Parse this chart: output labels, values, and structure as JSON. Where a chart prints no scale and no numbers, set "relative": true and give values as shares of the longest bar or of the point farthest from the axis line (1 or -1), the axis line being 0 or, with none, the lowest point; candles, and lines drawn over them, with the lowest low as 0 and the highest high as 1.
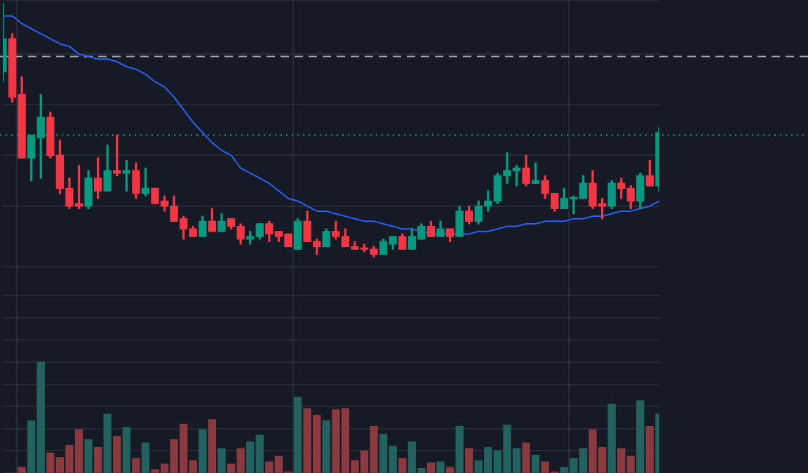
{
  "chart_data": [
    {
      "type": "candlestick",
      "relative": true,
      "tick_labels": false,
      "grid": true,
      "categories": [
        null,
        null,
        null,
        null,
        null,
        null,
        null,
        null,
        null,
        null,
        null,
        null,
        null,
        null,
        null,
        null,
        null,
        null,
        null,
        null,
        null,
        null,
        null,
        null,
        null,
        null,
        null,
        null,
        null,
        null,
        null,
        null,
        null,
        null,
        null,
        null,
        null,
        null,
        null,
        null,
        null,
        null,
        null,
        null,
        null,
        null,
        null,
        null,
        null,
        null,
        null,
        null,
        null,
        null,
        null,
        null,
        null,
        null,
        null,
        null,
        null,
        null,
        null,
        null,
        null,
        null,
        null,
        null,
        null,
        null
      ],
      "ohlc": [
        [
          0.73,
          1,
          0.69,
          0.86
        ],
        [
          0.86,
          0.88,
          0.61,
          0.63
        ],
        [
          0.64,
          0.71,
          0.39,
          0.39
        ],
        [
          0.39,
          0.48,
          0.3,
          0.48
        ],
        [
          0.47,
          0.64,
          0.31,
          0.55
        ],
        [
          0.55,
          0.57,
          0.39,
          0.4
        ],
        [
          0.4,
          0.46,
          0.25,
          0.27
        ],
        [
          0.27,
          0.31,
          0.19,
          0.2
        ],
        [
          0.21,
          0.36,
          0.19,
          0.2
        ],
        [
          0.2,
          0.34,
          0.19,
          0.31
        ],
        [
          0.31,
          0.39,
          0.23,
          0.26
        ],
        [
          0.26,
          0.44,
          0.26,
          0.34
        ],
        [
          0.34,
          0.48,
          0.32,
          0.33
        ],
        [
          0.33,
          0.38,
          0.26,
          0.34
        ],
        [
          0.34,
          0.37,
          0.23,
          0.25
        ],
        [
          0.25,
          0.35,
          0.24,
          0.27
        ],
        [
          0.27,
          0.27,
          0.21,
          0.21
        ],
        [
          0.22,
          0.24,
          0.18,
          0.2
        ],
        [
          0.2,
          0.24,
          0.14,
          0.14
        ],
        [
          0.15,
          0.16,
          0.07,
          0.11
        ],
        [
          0.11,
          0.12,
          0.08,
          0.08
        ],
        [
          0.08,
          0.16,
          0.08,
          0.14
        ],
        [
          0.14,
          0.19,
          0.1,
          0.1
        ],
        [
          0.1,
          0.17,
          0.1,
          0.14
        ],
        [
          0.15,
          0.15,
          0.11,
          0.12
        ],
        [
          0.12,
          0.13,
          0.05,
          0.07
        ],
        [
          0.07,
          0.1,
          0.05,
          0.08
        ],
        [
          0.08,
          0.13,
          0.07,
          0.13
        ],
        [
          0.13,
          0.14,
          0.06,
          0.09
        ],
        [
          0.1,
          0.1,
          0.06,
          0.08
        ],
        [
          0.09,
          0.09,
          0.04,
          0.04
        ],
        [
          0.03,
          0.15,
          0.03,
          0.14
        ],
        [
          0.14,
          0.18,
          0.06,
          0.06
        ],
        [
          0.06,
          0.07,
          0.01,
          0.04
        ],
        [
          0.04,
          0.11,
          0.04,
          0.1
        ],
        [
          0.1,
          0.14,
          0.07,
          0.08
        ],
        [
          0.08,
          0.11,
          0.04,
          0.04
        ],
        [
          0.04,
          0.06,
          0.03,
          0.03
        ],
        [
          0.035,
          0.05,
          0.02,
          0.03
        ],
        [
          0.03,
          0.04,
          0,
          0.01
        ],
        [
          0.01,
          0.07,
          0.01,
          0.06
        ],
        [
          0.05,
          0.08,
          0.03,
          0.08
        ],
        [
          0.08,
          0.09,
          0.03,
          0.03
        ],
        [
          0.03,
          0.11,
          0.03,
          0.08
        ],
        [
          0.07,
          0.13,
          0.07,
          0.12
        ],
        [
          0.12,
          0.14,
          0.08,
          0.08
        ],
        [
          0.08,
          0.14,
          0.08,
          0.11
        ],
        [
          0.11,
          0.11,
          0.06,
          0.08
        ],
        [
          0.08,
          0.2,
          0.08,
          0.18
        ],
        [
          0.18,
          0.2,
          0.13,
          0.14
        ],
        [
          0.14,
          0.22,
          0.13,
          0.2
        ],
        [
          0.2,
          0.26,
          0.18,
          0.22
        ],
        [
          0.22,
          0.33,
          0.21,
          0.32
        ],
        [
          0.32,
          0.41,
          0.29,
          0.34
        ],
        [
          0.34,
          0.36,
          0.28,
          0.35
        ],
        [
          0.35,
          0.4,
          0.28,
          0.29
        ],
        [
          0.29,
          0.37,
          0.29,
          0.3
        ],
        [
          0.3,
          0.32,
          0.23,
          0.25
        ],
        [
          0.25,
          0.25,
          0.18,
          0.19
        ],
        [
          0.19,
          0.27,
          0.19,
          0.23
        ],
        [
          0.228,
          0.24,
          0.17,
          0.234
        ],
        [
          0.23,
          0.32,
          0.23,
          0.29
        ],
        [
          0.29,
          0.34,
          0.19,
          0.2
        ],
        [
          0.21,
          0.23,
          0.15,
          0.2
        ],
        [
          0.2,
          0.3,
          0.19,
          0.29
        ],
        [
          0.29,
          0.31,
          0.23,
          0.27
        ],
        [
          0.27,
          0.28,
          0.19,
          0.22
        ],
        [
          0.22,
          0.33,
          0.19,
          0.32
        ],
        [
          0.32,
          0.38,
          0.28,
          0.28
        ],
        [
          0.28,
          0.51,
          0.26,
          0.49
        ]
      ],
      "series": [
        {
          "type": "line",
          "color": "#2962ff",
          "values": [
            0.95,
            0.95,
            0.92,
            0.9,
            0.88,
            0.86,
            0.84,
            0.83,
            0.8,
            0.79,
            0.78,
            0.78,
            0.77,
            0.75,
            0.74,
            0.72,
            0.69,
            0.67,
            0.63,
            0.58,
            0.53,
            0.49,
            0.45,
            0.42,
            0.4,
            0.35,
            0.33,
            0.31,
            0.29,
            0.26,
            0.23,
            0.22,
            0.2,
            0.18,
            0.18,
            0.17,
            0.16,
            0.15,
            0.14,
            0.14,
            0.13,
            0.12,
            0.11,
            0.11,
            0.1,
            0.09,
            0.09,
            0.09,
            0.09,
            0.09,
            0.1,
            0.1,
            0.11,
            0.12,
            0.12,
            0.13,
            0.13,
            0.14,
            0.14,
            0.14,
            0.15,
            0.15,
            0.16,
            0.16,
            0.17,
            0.18,
            0.18,
            0.19,
            0.2,
            0.22
          ]
        }
      ],
      "ref_lines": [
        {
          "axis": "y",
          "value": 0.79,
          "color": "#9ba1ad",
          "line_style": "dashed"
        },
        {
          "axis": "y",
          "value": 0.48,
          "color": "#4f8f8a",
          "line_style": "dotted"
        }
      ]
    },
    {
      "type": "bar",
      "relative": true,
      "tick_labels": false,
      "grid": true,
      "categories": [
        null,
        null,
        null,
        null,
        null,
        null,
        null,
        null,
        null,
        null,
        null,
        null,
        null,
        null,
        null,
        null,
        null,
        null,
        null,
        null,
        null,
        null,
        null,
        null,
        null,
        null,
        null,
        null,
        null,
        null,
        null,
        null,
        null,
        null,
        null,
        null,
        null,
        null,
        null,
        null,
        null,
        null,
        null,
        null,
        null,
        null,
        null,
        null,
        null,
        null,
        null,
        null,
        null,
        null,
        null,
        null,
        null,
        null,
        null,
        null,
        null,
        null,
        null,
        null,
        null,
        null,
        null,
        null,
        null,
        null
      ],
      "values": [
        null,
        null,
        0.05,
        0.47,
        1,
        0.18,
        0.14,
        0.25,
        0.39,
        0.3,
        0.23,
        0.53,
        0.33,
        0.41,
        0.13,
        0.27,
        0.03,
        0.08,
        0.3,
        0.44,
        0.11,
        0.39,
        0.48,
        0.22,
        0.08,
        0.22,
        0.28,
        0.34,
        0.1,
        0.15,
        0.01,
        0.68,
        0.58,
        0.52,
        0.47,
        0.57,
        0.58,
        0.11,
        0.2,
        0.42,
        0.35,
        0.24,
        0.13,
        0.28,
        0.04,
        0.09,
        0.1,
        0.05,
        0.42,
        0.22,
        0.11,
        0.23,
        0.2,
        0.43,
        0.22,
        0.27,
        0.16,
        0.1,
        0.01,
        0.05,
        0.13,
        0.22,
        0.39,
        0.23,
        0.62,
        0.22,
        0.15,
        0.65,
        0.42,
        0.53
      ],
      "colors": [
        "#8b3a40",
        "#8b3a40",
        "#8b3a40",
        "#22635f",
        "#22635f",
        "#8b3a40",
        "#8b3a40",
        "#8b3a40",
        "#8b3a40",
        "#22635f",
        "#8b3a40",
        "#22635f",
        "#8b3a40",
        "#22635f",
        "#8b3a40",
        "#22635f",
        "#8b3a40",
        "#8b3a40",
        "#8b3a40",
        "#8b3a40",
        "#8b3a40",
        "#22635f",
        "#8b3a40",
        "#22635f",
        "#8b3a40",
        "#8b3a40",
        "#22635f",
        "#22635f",
        "#8b3a40",
        "#8b3a40",
        "#8b3a40",
        "#22635f",
        "#8b3a40",
        "#8b3a40",
        "#22635f",
        "#8b3a40",
        "#8b3a40",
        "#8b3a40",
        "#8b3a40",
        "#8b3a40",
        "#22635f",
        "#22635f",
        "#8b3a40",
        "#22635f",
        "#22635f",
        "#8b3a40",
        "#22635f",
        "#8b3a40",
        "#22635f",
        "#8b3a40",
        "#22635f",
        "#22635f",
        "#22635f",
        "#22635f",
        "#22635f",
        "#8b3a40",
        "#22635f",
        "#8b3a40",
        "#8b3a40",
        "#22635f",
        "#22635f",
        "#22635f",
        "#8b3a40",
        "#8b3a40",
        "#22635f",
        "#8b3a40",
        "#8b3a40",
        "#22635f",
        "#8b3a40",
        "#22635f"
      ]
    }
  ]
}
